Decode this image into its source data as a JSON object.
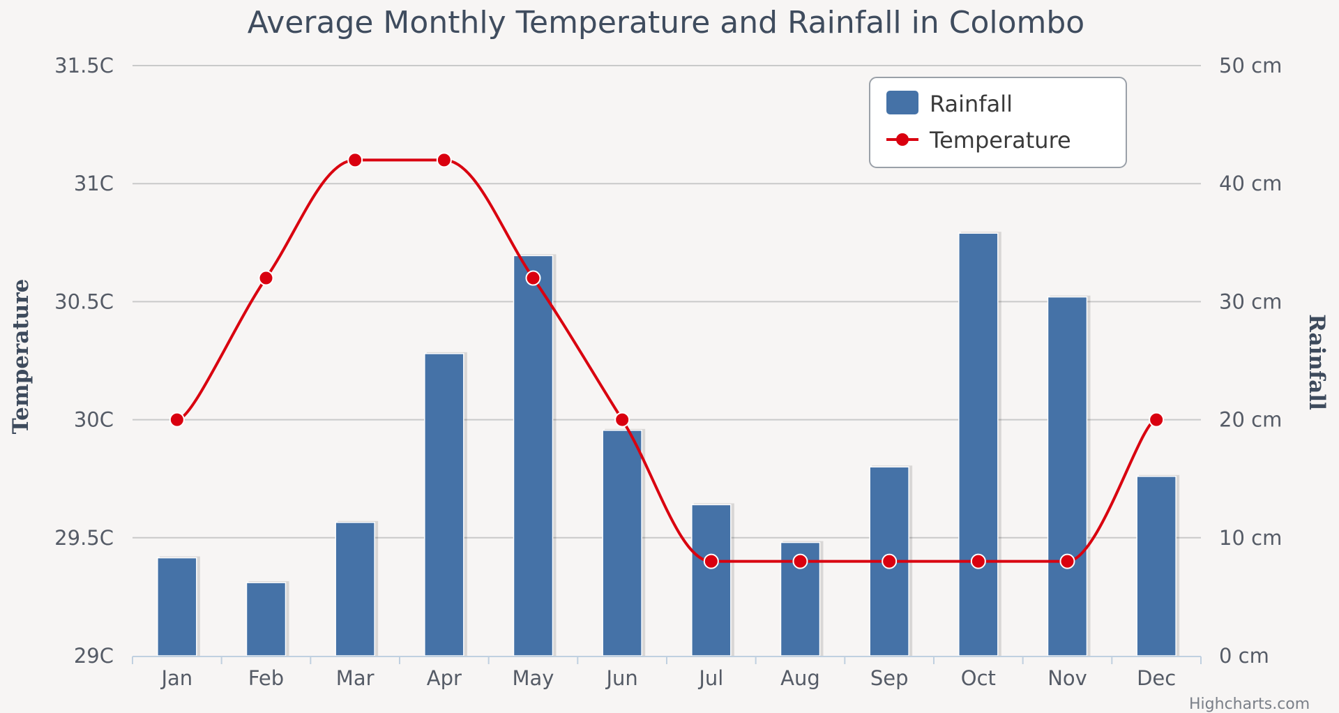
{
  "chart_data": {
    "type": "bar",
    "title": "Average Monthly Temperature and Rainfall in Colombo",
    "categories": [
      "Jan",
      "Feb",
      "Mar",
      "Apr",
      "May",
      "Jun",
      "Jul",
      "Aug",
      "Sep",
      "Oct",
      "Nov",
      "Dec"
    ],
    "series": [
      {
        "name": "Rainfall",
        "type": "bar",
        "axis": "right",
        "unit": "cm",
        "color": "#4572a7",
        "values": [
          8.3,
          6.2,
          11.3,
          25.6,
          33.9,
          19.1,
          12.8,
          9.6,
          16.0,
          35.8,
          30.4,
          15.2
        ]
      },
      {
        "name": "Temperature",
        "type": "line",
        "axis": "left",
        "unit": "C",
        "color": "#d9000f",
        "values": [
          30.0,
          30.6,
          31.1,
          31.1,
          30.6,
          30.0,
          29.4,
          29.4,
          29.4,
          29.4,
          29.4,
          30.0
        ]
      }
    ],
    "left_axis": {
      "title": "Temperature",
      "range": [
        29,
        31.5
      ],
      "ticks": [
        "29C",
        "29.5C",
        "30C",
        "30.5C",
        "31C",
        "31.5C"
      ]
    },
    "right_axis": {
      "title": "Rainfall",
      "range": [
        0,
        50
      ],
      "ticks": [
        "0 cm",
        "10 cm",
        "20 cm",
        "30 cm",
        "40 cm",
        "50 cm"
      ]
    },
    "grid": true,
    "legend_position": "top-right",
    "legend_items": [
      "Rainfall",
      "Temperature"
    ]
  },
  "credit": "Highcharts.com"
}
